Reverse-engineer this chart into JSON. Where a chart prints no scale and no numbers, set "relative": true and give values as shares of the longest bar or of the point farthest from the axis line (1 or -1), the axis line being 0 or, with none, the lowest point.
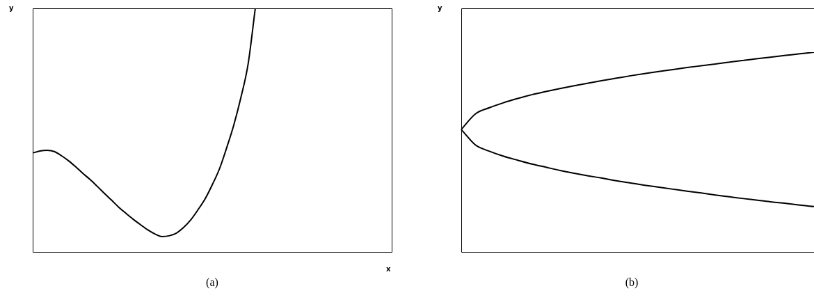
{
  "chart_data": [
    {
      "type": "line",
      "relative": true,
      "xlabel": "x",
      "ylabel": "y",
      "annotations": [
        "(a)"
      ],
      "legend": false,
      "marker": "none",
      "line_style": "solid",
      "categories": [
        null,
        null,
        null,
        null,
        null,
        null,
        null,
        null,
        null,
        null,
        null,
        null,
        null,
        null,
        null,
        null,
        null,
        null,
        null,
        null,
        null,
        null,
        null,
        null,
        null,
        null,
        null,
        null,
        null,
        null,
        null,
        null,
        null,
        null,
        null,
        null,
        null,
        null,
        null,
        null,
        null,
        null,
        null,
        null,
        null,
        null,
        null,
        null,
        null,
        null,
        null
      ],
      "series": [
        {
          "color": "#000000",
          "values": [
            0.406,
            0.414,
            0.417,
            0.412,
            0.395,
            0.374,
            0.349,
            0.322,
            0.297,
            0.269,
            0.24,
            0.212,
            0.183,
            0.158,
            0.134,
            0.112,
            0.091,
            0.074,
            0.063,
            0.066,
            0.077,
            0.1,
            0.131,
            0.172,
            0.217,
            0.275,
            0.34,
            0.426,
            0.52,
            0.634,
            0.771,
            1,
            null,
            null,
            null,
            null,
            null,
            null,
            null,
            null,
            null,
            null,
            null,
            null,
            null,
            null,
            null,
            null,
            null,
            null,
            null
          ]
        }
      ]
    },
    {
      "type": "line",
      "relative": true,
      "ylabel": "y",
      "annotations": [
        "(b)"
      ],
      "legend": false,
      "marker": "none",
      "line_style": "solid",
      "categories": [
        null,
        null,
        null,
        null,
        null,
        null,
        null,
        null,
        null,
        null,
        null,
        null,
        null,
        null,
        null,
        null,
        null,
        null,
        null,
        null,
        null,
        null,
        null,
        null,
        null,
        null
      ],
      "series": [
        {
          "color": "#000000",
          "values": [
            0.613,
            0.691,
            0.722,
            0.747,
            0.768,
            0.787,
            0.803,
            0.818,
            0.832,
            0.845,
            0.858,
            0.87,
            0.882,
            0.893,
            0.903,
            0.913,
            0.923,
            0.932,
            0.941,
            0.95,
            0.959,
            0.968,
            0.976,
            0.984,
            0.992,
            1
          ]
        },
        {
          "color": "#000000",
          "values": [
            0.613,
            0.536,
            0.504,
            0.479,
            0.459,
            0.44,
            0.424,
            0.408,
            0.394,
            0.381,
            0.369,
            0.356,
            0.345,
            0.334,
            0.324,
            0.314,
            0.304,
            0.295,
            0.285,
            0.276,
            0.267,
            0.259,
            0.25,
            0.243,
            0.234,
            0.227
          ]
        }
      ]
    }
  ]
}
